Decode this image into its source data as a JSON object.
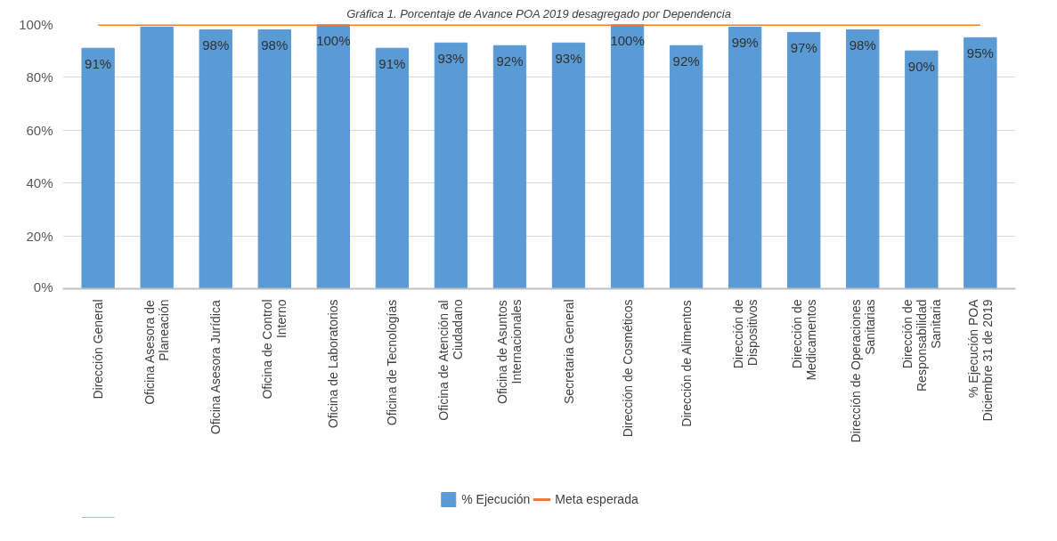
{
  "chart_data": {
    "type": "bar",
    "title": "Gráfica 1. Porcentaje de Avance POA 2019 desagregado por Dependencia",
    "categories": [
      "Dirección General",
      "Oficina Asesora de Planeación",
      "Oficina Asesora Jurídica",
      "Oficina de Control Interno",
      "Oficina de Laboratorios",
      "Oficina de Tecnologías",
      "Oficina de Atención al Ciudadano",
      "Oficina de Asuntos Internacionales",
      "Secretaria General",
      "Dirección de Cosméticos",
      "Dirección de Alimentos",
      "Dirección de Dispositivos",
      "Dirección de Medicamentos",
      "Dirección de Operaciones Sanitarias",
      "Dirección de Responsabilidad Sanitaria",
      "% Ejecución POA Diciembre 31 de 2019"
    ],
    "series": [
      {
        "name": "% Ejecución",
        "color": "#5b9bd5",
        "values": [
          91,
          99,
          98,
          98,
          100,
          91,
          93,
          92,
          93,
          100,
          92,
          99,
          97,
          98,
          90,
          95
        ],
        "value_labels": [
          "91%",
          null,
          "98%",
          "98%",
          "100%",
          "91%",
          "93%",
          "92%",
          "93%",
          "100%",
          "92%",
          "99%",
          "97%",
          "98%",
          "90%",
          "95%"
        ]
      },
      {
        "name": "Meta esperada",
        "type": "line",
        "color": "#ed7d31",
        "values": [
          100,
          100,
          100,
          100,
          100,
          100,
          100,
          100,
          100,
          100,
          100,
          100,
          100,
          100,
          100,
          100
        ]
      }
    ],
    "ylim": [
      0,
      100
    ],
    "yticks": [
      {
        "value": 0,
        "label": "0%"
      },
      {
        "value": 20,
        "label": "20%"
      },
      {
        "value": 40,
        "label": "40%"
      },
      {
        "value": 60,
        "label": "60%"
      },
      {
        "value": 80,
        "label": "80%"
      },
      {
        "value": 100,
        "label": "100%"
      }
    ],
    "grid": "y",
    "legend": "bottom"
  }
}
